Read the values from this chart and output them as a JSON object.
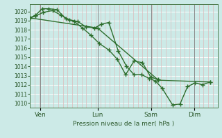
{
  "background_color": "#cceae7",
  "plot_bg_color": "#cceae7",
  "grid_color_h": "#ffffff",
  "grid_color_v": "#ddbbbb",
  "line_color": "#2d6e2d",
  "line_width": 1.0,
  "marker": "+",
  "marker_size": 4,
  "marker_lw": 1.0,
  "xlabel": "Pression niveau de la mer( hPa )",
  "ylim": [
    1009.5,
    1020.8
  ],
  "yticks": [
    1010,
    1011,
    1012,
    1013,
    1014,
    1015,
    1016,
    1017,
    1018,
    1019,
    1020
  ],
  "ytick_fontsize": 5.5,
  "xtick_labels": [
    "Ven",
    "Lun",
    "Sam",
    "Dim"
  ],
  "xtick_positions": [
    0.055,
    0.36,
    0.645,
    0.875
  ],
  "xlim": [
    0.0,
    1.0
  ],
  "series": [
    [
      0.0,
      1019.3,
      0.03,
      1019.5,
      0.07,
      1019.9,
      0.12,
      1020.1,
      0.165,
      1019.6,
      0.21,
      1019.1,
      0.255,
      1018.9,
      0.3,
      1018.3,
      0.345,
      1018.2,
      0.38,
      1018.6,
      0.42,
      1018.8,
      0.47,
      1015.7,
      0.515,
      1014.0,
      0.555,
      1013.1,
      0.595,
      1013.1,
      0.635,
      1012.7,
      0.67,
      1012.4,
      0.705,
      1011.6,
      0.76,
      1009.8,
      0.8,
      1009.9,
      0.84,
      1011.8,
      0.88,
      1012.2,
      0.92,
      1012.0,
      0.96,
      1012.3
    ],
    [
      0.0,
      1019.3,
      0.03,
      1019.6,
      0.065,
      1020.3,
      0.1,
      1020.3,
      0.145,
      1020.2,
      0.19,
      1019.2,
      0.235,
      1018.9,
      0.28,
      1018.2,
      0.325,
      1017.4,
      0.37,
      1016.5,
      0.42,
      1015.8,
      0.465,
      1014.8,
      0.51,
      1013.1,
      0.555,
      1014.6,
      0.6,
      1014.4,
      0.645,
      1012.8,
      0.685,
      1012.6
    ],
    [
      0.0,
      1019.3,
      0.36,
      1018.2,
      0.685,
      1012.5,
      0.96,
      1012.3
    ]
  ]
}
